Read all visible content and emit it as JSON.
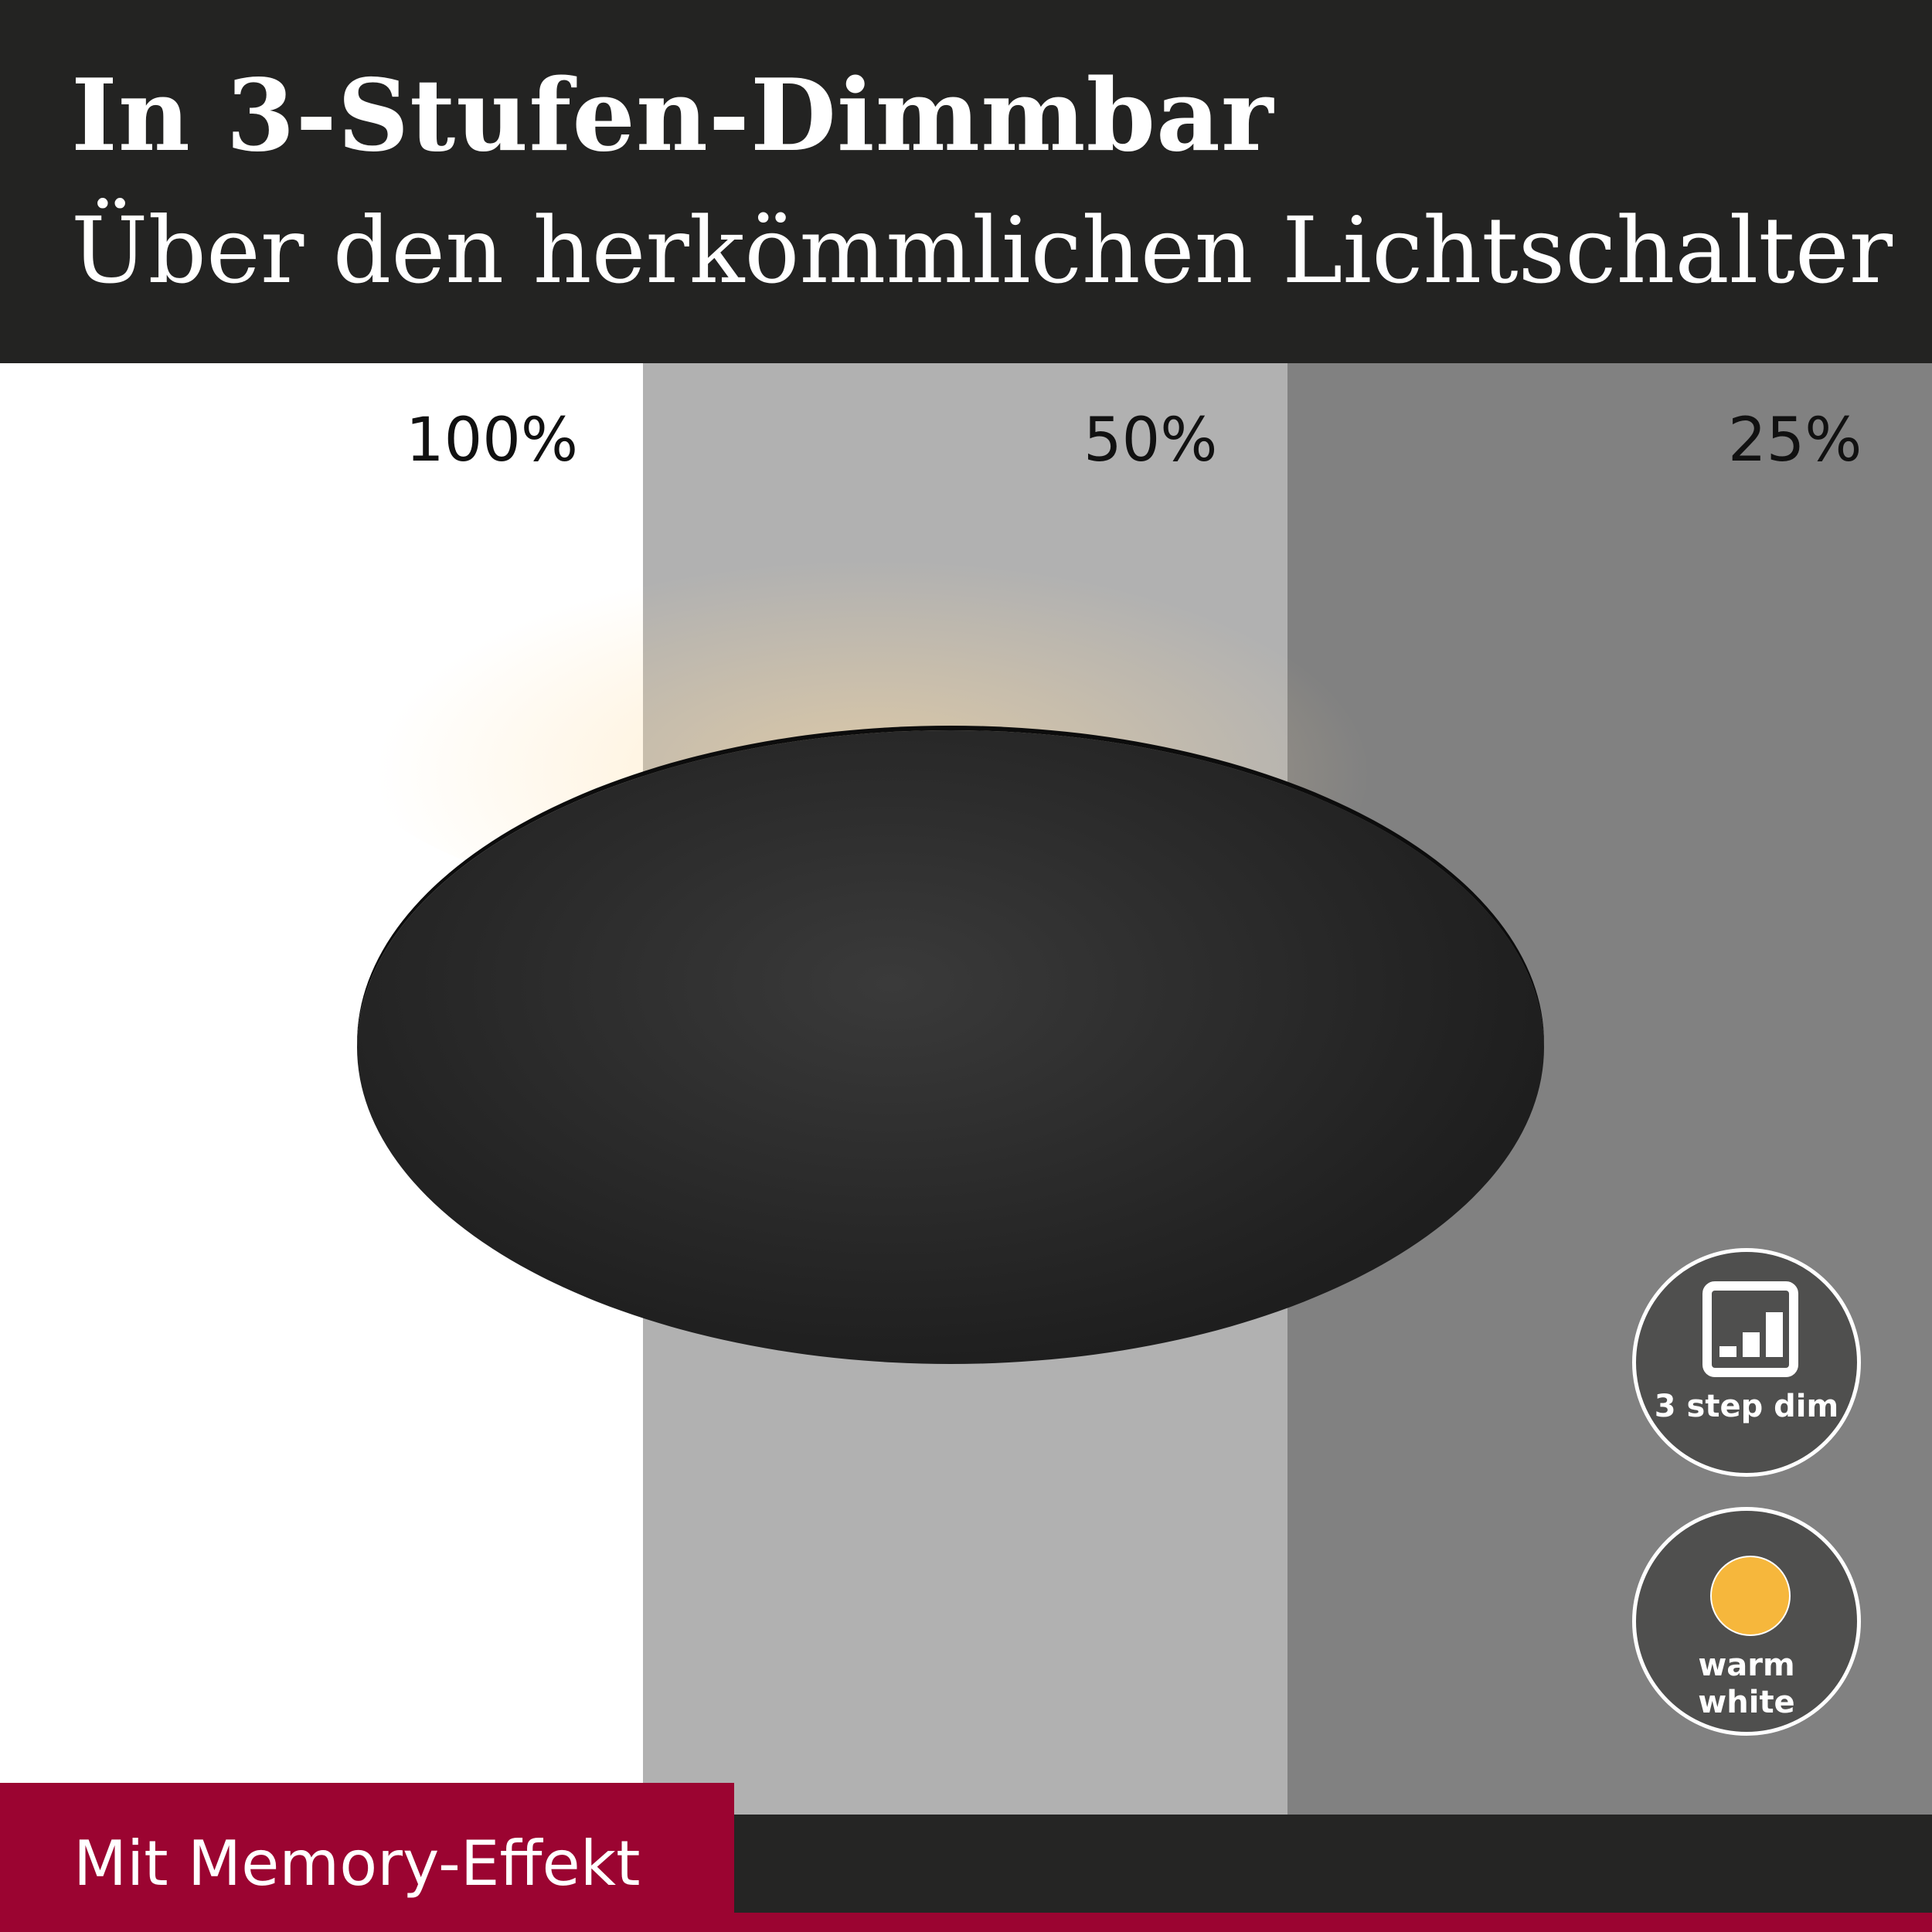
{
  "header": {
    "title": "In 3-Stufen-Dimmbar",
    "subtitle": "Über den herkömmlichen Lichtschalter"
  },
  "levels": [
    {
      "label": "100%",
      "color": "#ffffff"
    },
    {
      "label": "50%",
      "color": "#b1b1b1"
    },
    {
      "label": "25%",
      "color": "#818181"
    }
  ],
  "badges": {
    "dim": {
      "icon": "signal-bars-icon",
      "label": "3 step dim"
    },
    "color": {
      "icon": "warm-light-dot-icon",
      "line1": "warm",
      "line2": "white",
      "dot_color": "#f6b73c"
    }
  },
  "footer": {
    "label": "Mit Memory-Effekt",
    "accent": "#9b0431"
  }
}
